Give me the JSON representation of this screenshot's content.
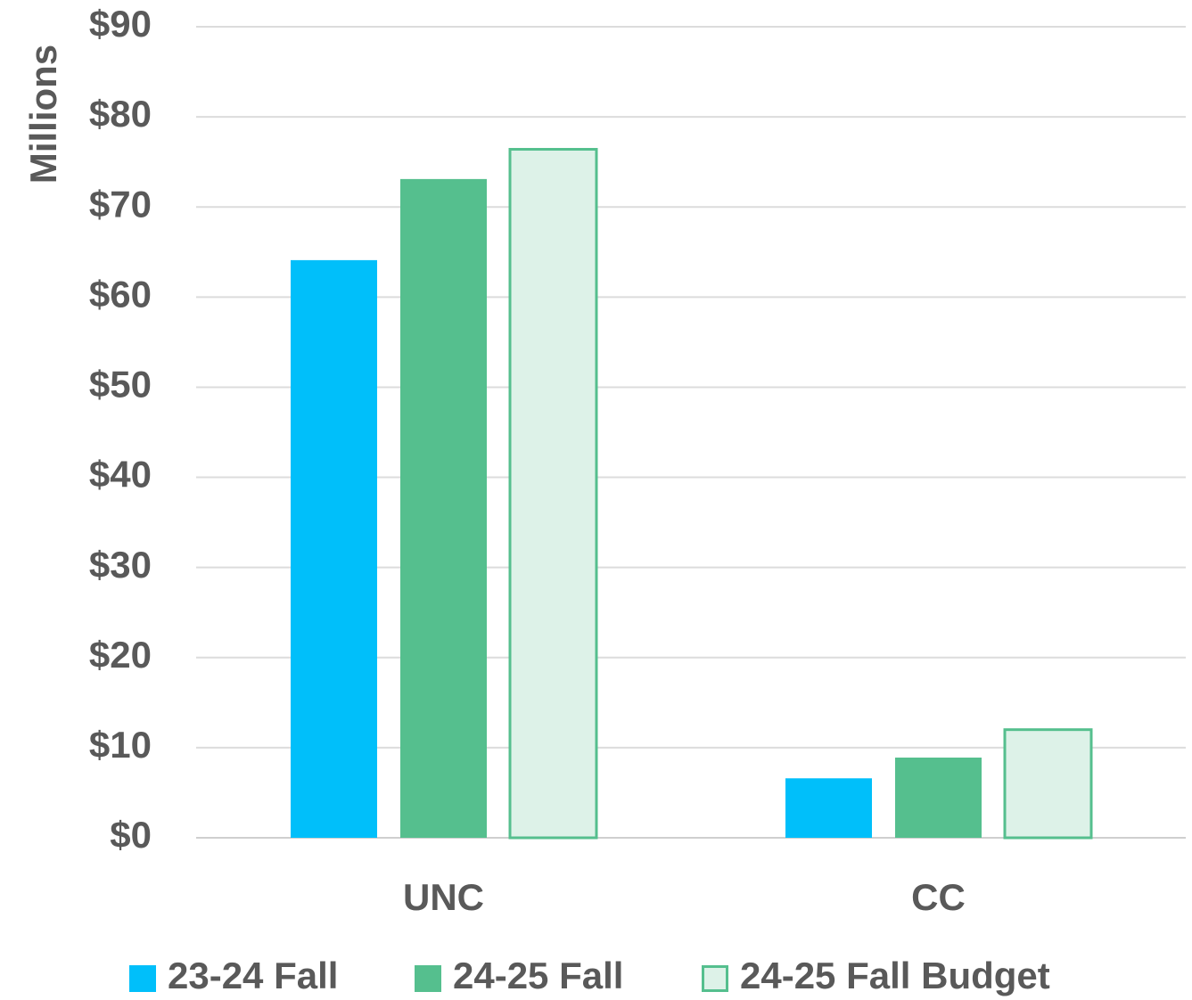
{
  "chart_data": {
    "type": "bar",
    "y_label": "Millions",
    "categories": [
      "UNC",
      "CC"
    ],
    "series": [
      {
        "name": "23-24 Fall",
        "color": "#00bffa",
        "values": [
          64.1,
          6.6
        ]
      },
      {
        "name": "24-25 Fall",
        "color": "#55bf8e",
        "values": [
          73.1,
          8.9
        ]
      },
      {
        "name": "24-25 Fall Budget",
        "color": "#ddf2e8",
        "border": "#55bf8e",
        "values": [
          76.4,
          12.0
        ]
      }
    ],
    "ylim": [
      0,
      90
    ],
    "yticks": [
      {
        "value": 0,
        "label": "$0"
      },
      {
        "value": 10,
        "label": "$10"
      },
      {
        "value": 20,
        "label": "$20"
      },
      {
        "value": 30,
        "label": "$30"
      },
      {
        "value": 40,
        "label": "$40"
      },
      {
        "value": 50,
        "label": "$50"
      },
      {
        "value": 60,
        "label": "$60"
      },
      {
        "value": 70,
        "label": "$70"
      },
      {
        "value": 80,
        "label": "$80"
      },
      {
        "value": 90,
        "label": "$90"
      }
    ],
    "grid": true,
    "legend": "bottom"
  }
}
